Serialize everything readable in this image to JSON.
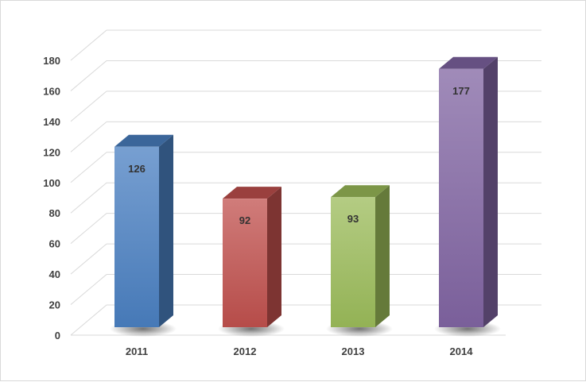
{
  "chart_data": {
    "type": "bar",
    "categories": [
      "2011",
      "2012",
      "2013",
      "2014"
    ],
    "values": [
      126,
      92,
      93,
      177
    ],
    "data_labels": [
      "126",
      "92",
      "93",
      "177"
    ],
    "ylim": [
      0,
      180
    ],
    "yticks": [
      "0",
      "20",
      "40",
      "60",
      "80",
      "100",
      "120",
      "140",
      "160",
      "180"
    ],
    "grid": true,
    "three_d": true,
    "colors": {
      "bars": [
        "#4a7fc1",
        "#c0504d",
        "#9bbb59",
        "#8064a2"
      ],
      "grid": "#d9d9d9"
    }
  }
}
